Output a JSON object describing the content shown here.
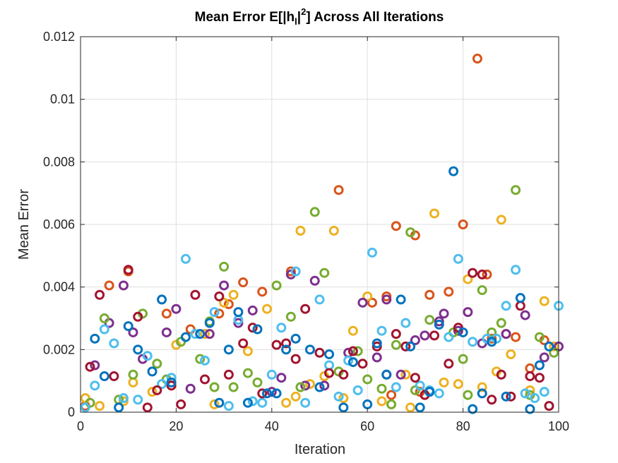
{
  "chart_data": {
    "type": "scatter",
    "title_main": "Mean Error E[|h",
    "title_sub": "l",
    "title_mid": "|",
    "title_sup": "2",
    "title_tail": "] Across All Iterations",
    "xlabel": "Iteration",
    "ylabel": "Mean Error",
    "xlim": [
      0,
      100
    ],
    "ylim": [
      0,
      0.012
    ],
    "xticks": [
      0,
      20,
      40,
      60,
      80,
      100
    ],
    "xtick_labels": [
      "0",
      "20",
      "40",
      "60",
      "80",
      "100"
    ],
    "yticks": [
      0,
      0.002,
      0.004,
      0.006,
      0.008,
      0.01,
      0.012
    ],
    "ytick_labels": [
      "0",
      "0.002",
      "0.004",
      "0.006",
      "0.008",
      "0.01",
      "0.012"
    ],
    "grid": true,
    "colors": [
      "#0072BD",
      "#D95319",
      "#EDB120",
      "#7E2F8E",
      "#77AC30",
      "#4DBEEE",
      "#A2142F"
    ],
    "series": [
      {
        "color": "#D95319",
        "x": [
          1,
          6,
          10,
          18,
          23,
          29,
          31,
          34,
          38,
          44,
          54,
          61,
          64,
          65,
          66,
          70,
          71,
          73,
          77,
          80,
          83,
          85,
          86,
          89,
          91,
          94,
          97
        ],
        "y": [
          0.0002,
          0.00405,
          0.0045,
          0.00315,
          0.00265,
          0.00315,
          0.00345,
          0.00415,
          0.00385,
          0.0045,
          0.0071,
          0.0035,
          0.0037,
          0.00055,
          0.00595,
          0.00565,
          0.00065,
          0.00375,
          0.00385,
          0.006,
          0.0113,
          0.0044,
          0.00235,
          0.0025,
          0.0024,
          0.0014,
          0.0023
        ]
      },
      {
        "color": "#EDB120",
        "x": [
          1,
          4,
          9,
          11,
          15,
          20,
          26,
          28,
          30,
          32,
          35,
          39,
          43,
          45,
          46,
          48,
          51,
          53,
          55,
          57,
          60,
          63,
          65,
          68,
          69,
          72,
          74,
          76,
          79,
          81,
          84,
          87,
          88,
          90,
          94,
          97,
          99
        ],
        "y": [
          0.00045,
          0.0002,
          0.00035,
          0.00095,
          0.00065,
          0.00215,
          0.0025,
          0.00025,
          0.0035,
          0.00375,
          0.00195,
          0.0033,
          0.0003,
          0.0005,
          0.0058,
          0.0009,
          0.00115,
          0.0058,
          0.00045,
          0.0026,
          0.0037,
          0.00035,
          0.00025,
          0.0012,
          0.00015,
          0.00055,
          0.00635,
          0.00095,
          0.0009,
          0.00425,
          0.0008,
          0.0013,
          0.00615,
          0.00185,
          0.0007,
          0.00355,
          0.0021
        ]
      },
      {
        "color": "#7E2F8E",
        "x": [
          3,
          6,
          9,
          11,
          13,
          18,
          20,
          23,
          27,
          30,
          33,
          36,
          40,
          42,
          44,
          47,
          49,
          51,
          56,
          59,
          62,
          64,
          67,
          70,
          72,
          75,
          76,
          79,
          81,
          84,
          89,
          93,
          97,
          100
        ],
        "y": [
          0.0015,
          0.00285,
          0.00405,
          0.00255,
          0.0017,
          0.00255,
          0.0033,
          0.00075,
          0.0025,
          0.00405,
          0.00285,
          0.00325,
          0.00065,
          0.0011,
          0.0044,
          0.00085,
          0.0042,
          0.00085,
          0.0019,
          0.0035,
          0.00175,
          0.0036,
          0.0012,
          0.0023,
          0.00245,
          0.0029,
          0.00315,
          0.0026,
          0.0032,
          0.0022,
          0.0025,
          0.0031,
          0.00175,
          0.0021
        ]
      },
      {
        "color": "#77AC30",
        "x": [
          2,
          5,
          8,
          11,
          13,
          16,
          18,
          21,
          25,
          27,
          28,
          30,
          32,
          35,
          37,
          41,
          44,
          46,
          49,
          51,
          54,
          58,
          60,
          63,
          65,
          66,
          69,
          70,
          73,
          78,
          80,
          81,
          84,
          86,
          88,
          91,
          94,
          96,
          99
        ],
        "y": [
          0.0003,
          0.003,
          0.0004,
          0.0012,
          0.00315,
          0.00155,
          0.00105,
          0.00225,
          0.0017,
          0.0029,
          0.0008,
          0.00465,
          0.0008,
          0.00125,
          0.00095,
          0.00405,
          0.00305,
          0.0008,
          0.0064,
          0.00445,
          0.0013,
          0.00195,
          0.00105,
          0.00075,
          0.00025,
          0.00215,
          0.00575,
          0.0007,
          0.00295,
          0.00255,
          0.0017,
          0.00055,
          0.0039,
          0.00255,
          0.00285,
          0.0071,
          0.00055,
          0.0024,
          0.0019
        ]
      },
      {
        "color": "#4DBEEE",
        "x": [
          1,
          3,
          5,
          7,
          9,
          12,
          14,
          17,
          19,
          22,
          24,
          26,
          28,
          31,
          33,
          36,
          38,
          40,
          42,
          45,
          47,
          50,
          52,
          54,
          56,
          58,
          61,
          63,
          66,
          68,
          71,
          73,
          75,
          77,
          79,
          82,
          85,
          87,
          89,
          91,
          93,
          95,
          97,
          100
        ],
        "y": [
          0.00015,
          0.00085,
          0.00265,
          0.0022,
          0.00045,
          0.0004,
          0.0018,
          0.0009,
          0.0011,
          0.0049,
          0.0025,
          0.00165,
          0.0032,
          0.0002,
          0.00295,
          0.00035,
          0.0003,
          0.0012,
          0.0027,
          0.0045,
          0.0003,
          0.0036,
          0.0015,
          0.0005,
          0.00165,
          0.0007,
          0.0051,
          0.0026,
          0.0008,
          0.00285,
          0.00085,
          0.0007,
          0.0006,
          0.0024,
          0.0049,
          0.00225,
          0.00235,
          0.00235,
          0.0034,
          0.00455,
          0.0006,
          0.00045,
          0.00065,
          0.0034
        ]
      },
      {
        "color": "#A2142F",
        "x": [
          2,
          4,
          7,
          10,
          12,
          14,
          16,
          19,
          21,
          24,
          26,
          29,
          31,
          34,
          36,
          38,
          41,
          43,
          45,
          47,
          50,
          52,
          55,
          57,
          59,
          62,
          64,
          66,
          68,
          70,
          72,
          74,
          77,
          79,
          82,
          84,
          86,
          88,
          90,
          92,
          94,
          96,
          98
        ],
        "y": [
          0.00145,
          0.00375,
          0.00115,
          0.00455,
          0.00305,
          0.00015,
          0.0007,
          0.00085,
          0.00025,
          0.00375,
          0.00105,
          0.0037,
          0.0012,
          0.0022,
          0.0027,
          0.0006,
          0.00215,
          0.0022,
          0.0017,
          0.0033,
          0.0019,
          0.00125,
          0.0012,
          0.00195,
          0.00155,
          0.0021,
          0.0012,
          0.0025,
          0.0021,
          0.0011,
          0.00055,
          0.00245,
          0.00155,
          0.0027,
          0.00445,
          0.0044,
          0.0004,
          0.0012,
          0.0005,
          0.0034,
          0.00115,
          0.0011,
          0.0002
        ]
      },
      {
        "color": "#0072BD",
        "x": [
          3,
          5,
          8,
          10,
          12,
          15,
          17,
          19,
          22,
          25,
          27,
          29,
          31,
          33,
          35,
          37,
          39,
          41,
          43,
          45,
          48,
          50,
          52,
          55,
          57,
          60,
          62,
          64,
          67,
          69,
          71,
          73,
          75,
          78,
          80,
          82,
          84,
          86,
          89,
          92,
          94,
          96,
          98
        ],
        "y": [
          0.00235,
          0.00115,
          0.00015,
          0.00275,
          0.002,
          0.0013,
          0.0036,
          0.00095,
          0.0024,
          0.0025,
          0.00285,
          0.0003,
          0.002,
          0.0032,
          0.0003,
          0.00265,
          0.0006,
          0.0006,
          0.002,
          0.00235,
          0.002,
          0.0008,
          0.00185,
          0.00015,
          0.0016,
          0.00025,
          0.0022,
          0.0012,
          0.0036,
          0.0021,
          0.00015,
          0.00065,
          0.0028,
          0.0077,
          0.00255,
          0.0001,
          0.0006,
          0.00225,
          0.0005,
          0.00365,
          0.0001,
          0.0015,
          0.0021
        ]
      }
    ]
  }
}
